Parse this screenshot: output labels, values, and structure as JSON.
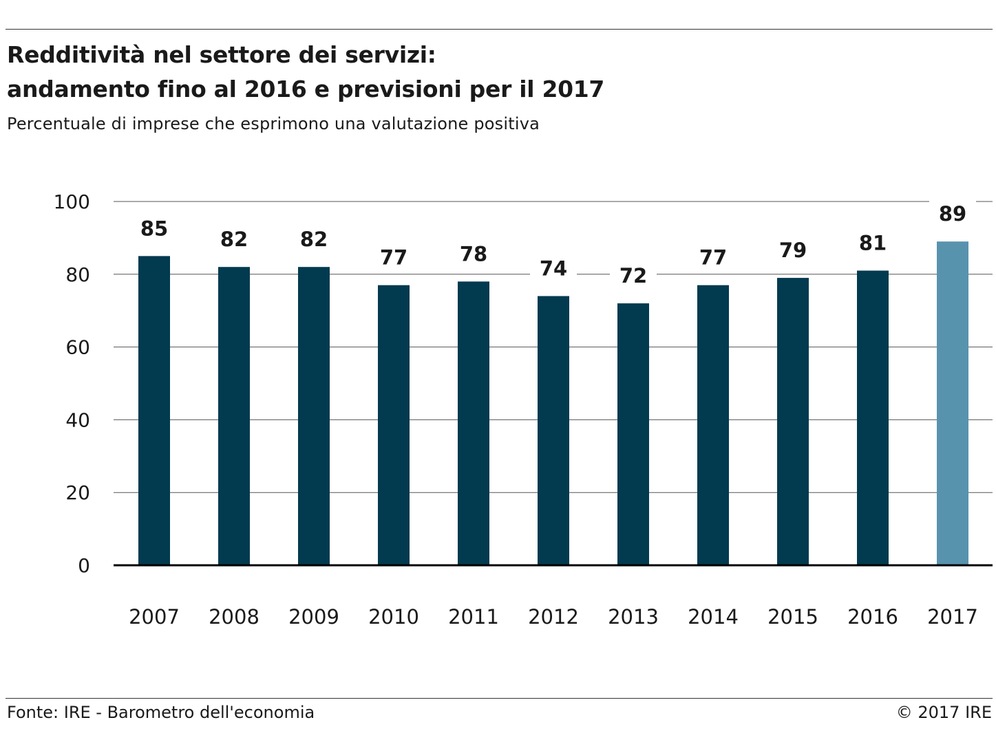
{
  "header": {
    "title_line1": "Redditività nel settore dei servizi:",
    "title_line2": "andamento fino al 2016 e previsioni per il 2017",
    "subtitle": "Percentuale di imprese che esprimono una valutazione positiva"
  },
  "footer": {
    "source": "Fonte: IRE - Barometro dell'economia",
    "copyright": "© 2017 IRE"
  },
  "chart_data": {
    "type": "bar",
    "categories": [
      "2007",
      "2008",
      "2009",
      "2010",
      "2011",
      "2012",
      "2013",
      "2014",
      "2015",
      "2016",
      "2017"
    ],
    "values": [
      85,
      82,
      82,
      77,
      78,
      74,
      72,
      77,
      79,
      81,
      89
    ],
    "data_labels": [
      "85",
      "82",
      "82",
      "77",
      "78",
      "74",
      "72",
      "77",
      "79",
      "81",
      "89"
    ],
    "ylim": [
      0,
      100
    ],
    "yticks": [
      0,
      20,
      40,
      60,
      80,
      100
    ],
    "grid": true,
    "colors": {
      "actual": "#023a4f",
      "forecast": "#5893ae",
      "grid": "#555555",
      "axis": "#000000"
    },
    "forecast_categories": [
      "2017"
    ]
  }
}
